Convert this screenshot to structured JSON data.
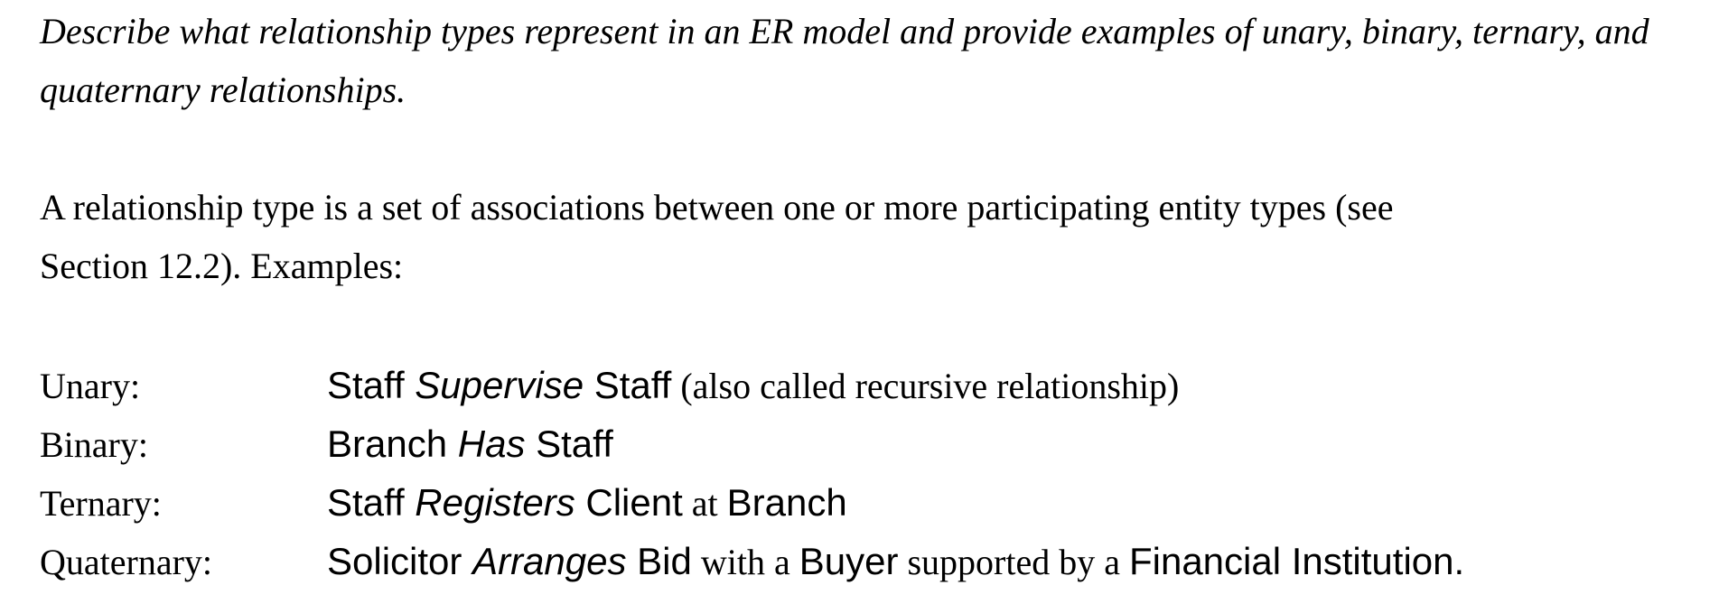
{
  "question": "Describe what relationship types represent in an ER model and provide examples of unary, binary, ternary, and quaternary relationships.",
  "answer": {
    "line1": "A relationship type is a set of associations between one or more participating entity types (see",
    "line2": "Section 12.2). Examples:"
  },
  "examples": [
    {
      "label": "Unary:",
      "parts": [
        {
          "text": "Staff ",
          "style": "sans"
        },
        {
          "text": "Supervise",
          "style": "sans-italic"
        },
        {
          "text": " Staff",
          "style": "sans"
        },
        {
          "text": " (also called recursive relationship)",
          "style": "serif"
        }
      ]
    },
    {
      "label": "Binary:",
      "parts": [
        {
          "text": "Branch ",
          "style": "sans"
        },
        {
          "text": "Has",
          "style": "sans-italic"
        },
        {
          "text": " Staff",
          "style": "sans"
        }
      ]
    },
    {
      "label": "Ternary:",
      "parts": [
        {
          "text": "Staff ",
          "style": "sans"
        },
        {
          "text": "Registers",
          "style": "sans-italic"
        },
        {
          "text": " Client",
          "style": "sans"
        },
        {
          "text": " at ",
          "style": "serif"
        },
        {
          "text": "Branch",
          "style": "sans"
        }
      ]
    },
    {
      "label": "Quaternary:",
      "parts": [
        {
          "text": "Solicitor ",
          "style": "sans"
        },
        {
          "text": "Arranges",
          "style": "sans-italic"
        },
        {
          "text": " Bid",
          "style": "sans"
        },
        {
          "text": " with a ",
          "style": "serif"
        },
        {
          "text": "Buyer",
          "style": "sans"
        },
        {
          "text": " supported by a ",
          "style": "serif"
        },
        {
          "text": "Financial Institution.",
          "style": "sans"
        }
      ]
    }
  ]
}
